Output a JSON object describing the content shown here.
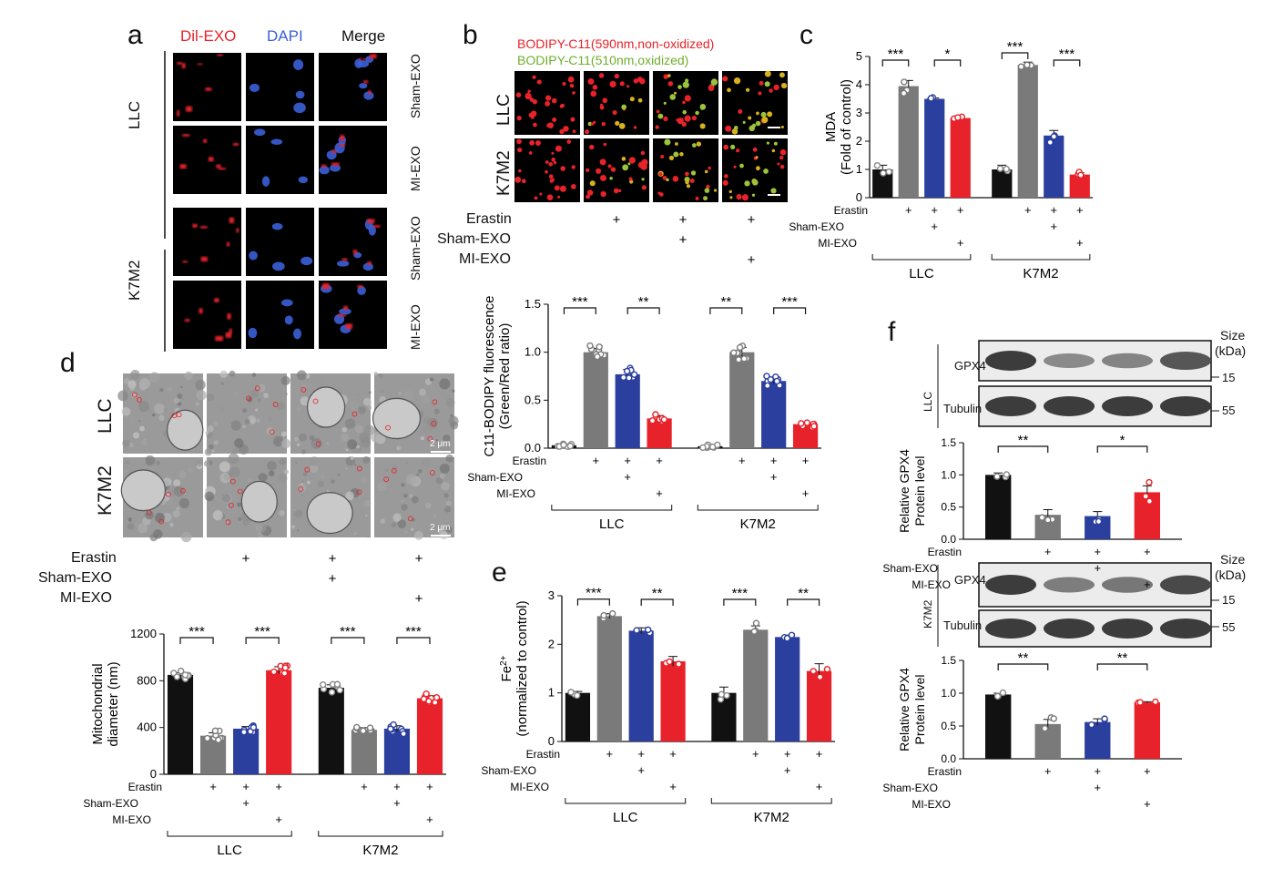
{
  "colors": {
    "black": "#111111",
    "gray": "#7a7a7a",
    "blue": "#2b3f9e",
    "red": "#e8222a",
    "dil_red": "#e8222a",
    "dapi_blue": "#3a5fd8",
    "bodipy_red": "#e8222a",
    "bodipy_green": "#6fae2c"
  },
  "panel_letters": [
    "a",
    "b",
    "c",
    "d",
    "e",
    "f"
  ],
  "panel_a": {
    "col_headers": [
      "Dil-EXO",
      "DAPI",
      "Merge"
    ],
    "group_labels": [
      "LLC",
      "K7M2"
    ],
    "row_labels": [
      "Sham-EXO",
      "MI-EXO",
      "Sham-EXO",
      "MI-EXO"
    ]
  },
  "panel_b": {
    "legend_red": "BODIPY-C11(590nm,non-oxidized)",
    "legend_green": "BODIPY-C11(510nm,oxidized)",
    "row_labels": [
      "LLC",
      "K7M2"
    ],
    "treat_labels": [
      "Erastin",
      "Sham-EXO",
      "MI-EXO"
    ]
  },
  "panel_d": {
    "row_labels": [
      "LLC",
      "K7M2"
    ],
    "scalebar": "2 μm",
    "treat_labels": [
      "Erastin",
      "Sham-EXO",
      "MI-EXO"
    ]
  },
  "panel_f": {
    "size_label": "Size",
    "kda_label": "(kDa)",
    "blot_groups": [
      "LLC",
      "K7M2"
    ],
    "bands": [
      "GPX4",
      "Tubulin"
    ],
    "markers": [
      "15",
      "55"
    ]
  },
  "plus": "+",
  "chart_data": [
    {
      "id": "c",
      "type": "bar",
      "ylabel": "MDA\n(Fold of control)",
      "ylim": [
        0,
        5
      ],
      "yticks": [
        "0",
        "1",
        "2",
        "3",
        "4",
        "5"
      ],
      "groups": [
        "LLC",
        "K7M2"
      ],
      "treat_labels": [
        "Erastin",
        "Sham-EXO",
        "MI-EXO"
      ],
      "values": [
        1.0,
        3.95,
        3.5,
        2.82,
        1.0,
        4.7,
        2.2,
        0.82
      ],
      "errors": [
        0.15,
        0.2,
        0.03,
        0.05,
        0.15,
        0.1,
        0.18,
        0.06
      ],
      "sig": [
        {
          "a": 0,
          "b": 1,
          "label": "***"
        },
        {
          "a": 2,
          "b": 3,
          "label": "*"
        },
        {
          "a": 4,
          "b": 5,
          "label": "***"
        },
        {
          "a": 6,
          "b": 7,
          "label": "***"
        }
      ]
    },
    {
      "id": "b",
      "type": "bar",
      "ylabel": "C11-BODIPY fluorescence\n(Green/Red ratio)",
      "ylim": [
        0,
        1.5
      ],
      "yticks": [
        "0.0",
        "0.5",
        "1.0",
        "1.5"
      ],
      "groups": [
        "LLC",
        "K7M2"
      ],
      "treat_labels": [
        "Erastin",
        "Sham-EXO",
        "MI-EXO"
      ],
      "values": [
        0.03,
        1.0,
        0.77,
        0.31,
        0.02,
        1.0,
        0.7,
        0.25
      ],
      "errors": [
        0.01,
        0.04,
        0.05,
        0.03,
        0.01,
        0.05,
        0.03,
        0.02
      ],
      "sig": [
        {
          "a": 0,
          "b": 1,
          "label": "***"
        },
        {
          "a": 2,
          "b": 3,
          "label": "**"
        },
        {
          "a": 4,
          "b": 5,
          "label": "**"
        },
        {
          "a": 6,
          "b": 7,
          "label": "***"
        }
      ]
    },
    {
      "id": "d",
      "type": "bar",
      "ylabel": "Mitochondrial\ndiameter (nm)",
      "ylim": [
        0,
        1200
      ],
      "yticks": [
        "0",
        "400",
        "800",
        "1200"
      ],
      "groups": [
        "LLC",
        "K7M2"
      ],
      "treat_labels": [
        "Erastin",
        "Sham-EXO",
        "MI-EXO"
      ],
      "values": [
        850,
        330,
        390,
        890,
        740,
        380,
        390,
        650
      ],
      "errors": [
        20,
        25,
        18,
        30,
        25,
        18,
        25,
        22
      ],
      "sig": [
        {
          "a": 0,
          "b": 1,
          "label": "***"
        },
        {
          "a": 2,
          "b": 3,
          "label": "***"
        },
        {
          "a": 4,
          "b": 5,
          "label": "***"
        },
        {
          "a": 6,
          "b": 7,
          "label": "***"
        }
      ]
    },
    {
      "id": "e",
      "type": "bar",
      "ylabel": "Fe2+\n(normalized to control)",
      "ylim": [
        0,
        3
      ],
      "yticks": [
        "0",
        "1",
        "2",
        "3"
      ],
      "groups": [
        "LLC",
        "K7M2"
      ],
      "treat_labels": [
        "Erastin",
        "Sham-EXO",
        "MI-EXO"
      ],
      "values": [
        1.0,
        2.58,
        2.28,
        1.65,
        1.0,
        2.3,
        2.15,
        1.45
      ],
      "errors": [
        0.03,
        0.05,
        0.06,
        0.1,
        0.12,
        0.08,
        0.04,
        0.15
      ],
      "sig": [
        {
          "a": 0,
          "b": 1,
          "label": "***"
        },
        {
          "a": 2,
          "b": 3,
          "label": "**"
        },
        {
          "a": 4,
          "b": 5,
          "label": "***"
        },
        {
          "a": 6,
          "b": 7,
          "label": "**"
        }
      ]
    },
    {
      "id": "f1",
      "type": "bar",
      "ylabel": "Relative GPX4\nProtein  level",
      "ylim": [
        0,
        1.5
      ],
      "yticks": [
        "0.0",
        "0.5",
        "1.0",
        "1.5"
      ],
      "treat_labels": [
        "Erastin",
        "Sham-EXO",
        "MI-EXO"
      ],
      "values": [
        1.0,
        0.38,
        0.36,
        0.73
      ],
      "errors": [
        0.03,
        0.08,
        0.07,
        0.1
      ],
      "sig": [
        {
          "a": 0,
          "b": 1,
          "label": "**"
        },
        {
          "a": 2,
          "b": 3,
          "label": "*"
        }
      ]
    },
    {
      "id": "f2",
      "type": "bar",
      "ylabel": "Relative GPX4\nProtein  level",
      "ylim": [
        0,
        1.5
      ],
      "yticks": [
        "0.0",
        "0.5",
        "1.0",
        "1.5"
      ],
      "treat_labels": [
        "Erastin",
        "Sham-EXO",
        "MI-EXO"
      ],
      "values": [
        0.98,
        0.53,
        0.56,
        0.86
      ],
      "errors": [
        0.02,
        0.07,
        0.05,
        0.01
      ],
      "sig": [
        {
          "a": 0,
          "b": 1,
          "label": "**"
        },
        {
          "a": 2,
          "b": 3,
          "label": "**"
        }
      ]
    }
  ]
}
